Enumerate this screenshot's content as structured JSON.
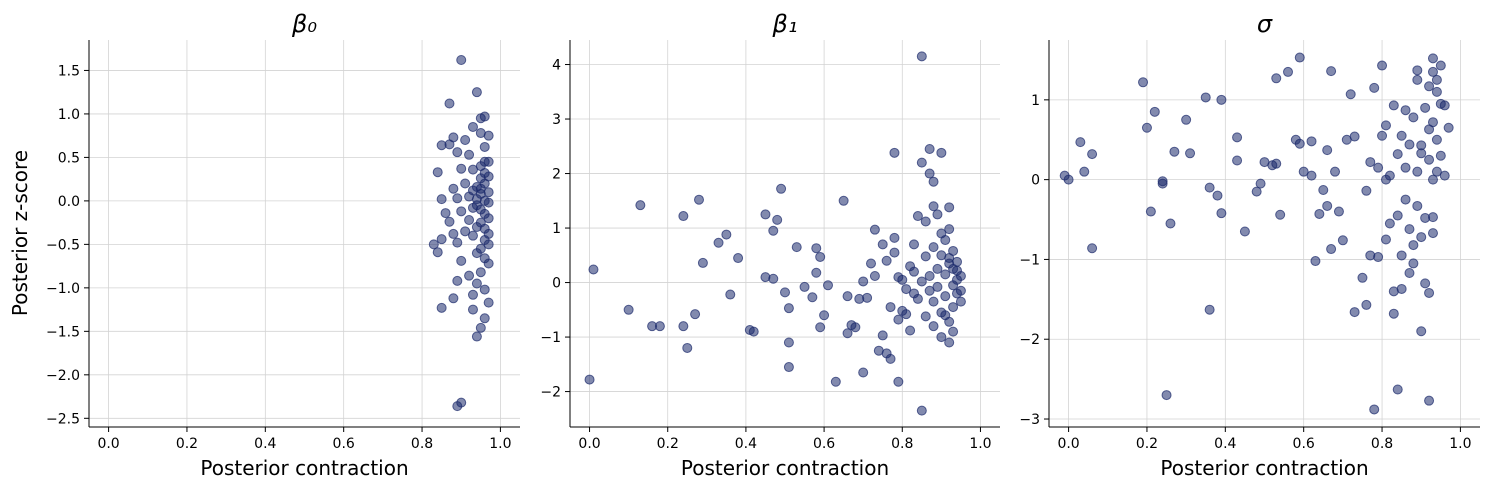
{
  "figure": {
    "ylabel": "Posterior z-score",
    "point_color": "#1b2a6b",
    "grid_color": "#d3d3d3"
  },
  "chart_data": [
    {
      "type": "scatter",
      "title": "β₀",
      "xlabel": "Posterior contraction",
      "ylabel": "Posterior z-score",
      "xlim": [
        -0.05,
        1.05
      ],
      "ylim": [
        -2.6,
        1.85
      ],
      "xticks": [
        "0.0",
        "0.2",
        "0.4",
        "0.6",
        "0.8",
        "1.0"
      ],
      "yticks": [
        "−2.5",
        "−2.0",
        "−1.5",
        "−1.0",
        "−0.5",
        "0.0",
        "0.5",
        "1.0",
        "1.5"
      ],
      "grid": true,
      "points": [
        [
          0.9,
          1.62
        ],
        [
          0.87,
          1.12
        ],
        [
          0.94,
          1.25
        ],
        [
          0.96,
          0.97
        ],
        [
          0.95,
          0.95
        ],
        [
          0.93,
          0.85
        ],
        [
          0.88,
          0.73
        ],
        [
          0.87,
          0.65
        ],
        [
          0.85,
          0.64
        ],
        [
          0.91,
          0.7
        ],
        [
          0.95,
          0.78
        ],
        [
          0.97,
          0.75
        ],
        [
          0.89,
          0.56
        ],
        [
          0.92,
          0.53
        ],
        [
          0.96,
          0.62
        ],
        [
          0.97,
          0.45
        ],
        [
          0.95,
          0.4
        ],
        [
          0.93,
          0.36
        ],
        [
          0.9,
          0.37
        ],
        [
          0.97,
          0.28
        ],
        [
          0.84,
          0.33
        ],
        [
          0.95,
          0.26
        ],
        [
          0.96,
          0.2
        ],
        [
          0.94,
          0.16
        ],
        [
          0.93,
          0.12
        ],
        [
          0.88,
          0.14
        ],
        [
          0.97,
          0.1
        ],
        [
          0.91,
          0.2
        ],
        [
          0.85,
          0.02
        ],
        [
          0.89,
          0.03
        ],
        [
          0.92,
          0.05
        ],
        [
          0.95,
          0.08
        ],
        [
          0.96,
          0.0
        ],
        [
          0.97,
          -0.02
        ],
        [
          0.94,
          -0.05
        ],
        [
          0.93,
          -0.08
        ],
        [
          0.95,
          -0.1
        ],
        [
          0.86,
          -0.14
        ],
        [
          0.9,
          -0.12
        ],
        [
          0.96,
          -0.15
        ],
        [
          0.97,
          -0.2
        ],
        [
          0.92,
          -0.22
        ],
        [
          0.95,
          -0.25
        ],
        [
          0.94,
          -0.3
        ],
        [
          0.87,
          -0.24
        ],
        [
          0.85,
          -0.44
        ],
        [
          0.88,
          -0.38
        ],
        [
          0.91,
          -0.35
        ],
        [
          0.93,
          -0.4
        ],
        [
          0.96,
          -0.45
        ],
        [
          0.97,
          -0.5
        ],
        [
          0.95,
          -0.55
        ],
        [
          0.89,
          -0.48
        ],
        [
          0.83,
          -0.5
        ],
        [
          0.84,
          -0.59
        ],
        [
          0.94,
          -0.6
        ],
        [
          0.96,
          -0.66
        ],
        [
          0.9,
          -0.69
        ],
        [
          0.97,
          -0.72
        ],
        [
          0.92,
          -0.86
        ],
        [
          0.95,
          -0.82
        ],
        [
          0.94,
          -0.95
        ],
        [
          0.89,
          -0.92
        ],
        [
          0.96,
          -1.02
        ],
        [
          0.93,
          -1.08
        ],
        [
          0.88,
          -1.12
        ],
        [
          0.97,
          -1.17
        ],
        [
          0.93,
          -1.25
        ],
        [
          0.85,
          -1.23
        ],
        [
          0.96,
          -1.35
        ],
        [
          0.95,
          -1.46
        ],
        [
          0.94,
          -1.56
        ],
        [
          0.9,
          -2.32
        ],
        [
          0.89,
          -2.36
        ],
        [
          0.96,
          0.32
        ],
        [
          0.95,
          0.14
        ],
        [
          0.96,
          -0.32
        ],
        [
          0.97,
          -0.38
        ],
        [
          0.94,
          0.02
        ],
        [
          0.96,
          0.45
        ]
      ]
    },
    {
      "type": "scatter",
      "title": "β₁",
      "xlabel": "Posterior contraction",
      "ylabel": "",
      "xlim": [
        -0.05,
        1.05
      ],
      "ylim": [
        -2.65,
        4.45
      ],
      "xticks": [
        "0.0",
        "0.2",
        "0.4",
        "0.6",
        "0.8",
        "1.0"
      ],
      "yticks": [
        "−2",
        "−1",
        "0",
        "1",
        "2",
        "3",
        "4"
      ],
      "grid": true,
      "points": [
        [
          0.0,
          -1.78
        ],
        [
          0.01,
          0.24
        ],
        [
          0.1,
          -0.5
        ],
        [
          0.13,
          1.42
        ],
        [
          0.16,
          -0.8
        ],
        [
          0.18,
          -0.8
        ],
        [
          0.24,
          1.22
        ],
        [
          0.24,
          -0.8
        ],
        [
          0.25,
          -1.2
        ],
        [
          0.27,
          -0.58
        ],
        [
          0.28,
          1.52
        ],
        [
          0.29,
          0.36
        ],
        [
          0.33,
          0.73
        ],
        [
          0.35,
          0.88
        ],
        [
          0.36,
          -0.22
        ],
        [
          0.38,
          0.45
        ],
        [
          0.41,
          -0.87
        ],
        [
          0.42,
          -0.9
        ],
        [
          0.45,
          0.1
        ],
        [
          0.45,
          1.25
        ],
        [
          0.47,
          0.07
        ],
        [
          0.47,
          0.95
        ],
        [
          0.48,
          1.15
        ],
        [
          0.49,
          1.72
        ],
        [
          0.5,
          -0.18
        ],
        [
          0.51,
          -0.47
        ],
        [
          0.51,
          -1.1
        ],
        [
          0.51,
          -1.55
        ],
        [
          0.53,
          0.65
        ],
        [
          0.55,
          -0.08
        ],
        [
          0.57,
          -0.27
        ],
        [
          0.58,
          0.63
        ],
        [
          0.59,
          0.47
        ],
        [
          0.58,
          0.18
        ],
        [
          0.59,
          -0.82
        ],
        [
          0.6,
          -0.6
        ],
        [
          0.61,
          -0.05
        ],
        [
          0.63,
          -1.82
        ],
        [
          0.65,
          1.5
        ],
        [
          0.66,
          -0.93
        ],
        [
          0.66,
          -0.25
        ],
        [
          0.67,
          -0.78
        ],
        [
          0.68,
          -0.82
        ],
        [
          0.69,
          -0.3
        ],
        [
          0.7,
          -1.65
        ],
        [
          0.7,
          0.02
        ],
        [
          0.71,
          -0.28
        ],
        [
          0.72,
          0.35
        ],
        [
          0.73,
          0.97
        ],
        [
          0.73,
          0.12
        ],
        [
          0.74,
          -1.25
        ],
        [
          0.75,
          -0.97
        ],
        [
          0.75,
          0.7
        ],
        [
          0.76,
          -1.3
        ],
        [
          0.76,
          0.4
        ],
        [
          0.77,
          -1.4
        ],
        [
          0.77,
          -0.45
        ],
        [
          0.78,
          0.55
        ],
        [
          0.78,
          0.82
        ],
        [
          0.78,
          2.38
        ],
        [
          0.79,
          0.1
        ],
        [
          0.79,
          -0.68
        ],
        [
          0.79,
          -1.82
        ],
        [
          0.8,
          0.05
        ],
        [
          0.8,
          -0.52
        ],
        [
          0.81,
          -0.12
        ],
        [
          0.81,
          -0.58
        ],
        [
          0.82,
          0.3
        ],
        [
          0.82,
          -0.88
        ],
        [
          0.83,
          0.7
        ],
        [
          0.83,
          0.2
        ],
        [
          0.83,
          -0.2
        ],
        [
          0.84,
          1.22
        ],
        [
          0.84,
          -0.3
        ],
        [
          0.85,
          4.15
        ],
        [
          0.85,
          2.2
        ],
        [
          0.85,
          -2.35
        ],
        [
          0.85,
          0.02
        ],
        [
          0.86,
          0.48
        ],
        [
          0.86,
          -0.62
        ],
        [
          0.86,
          1.12
        ],
        [
          0.87,
          2.45
        ],
        [
          0.87,
          2.0
        ],
        [
          0.87,
          0.12
        ],
        [
          0.88,
          1.85
        ],
        [
          0.88,
          1.4
        ],
        [
          0.88,
          0.65
        ],
        [
          0.88,
          -0.35
        ],
        [
          0.88,
          -0.8
        ],
        [
          0.89,
          1.25
        ],
        [
          0.89,
          0.25
        ],
        [
          0.89,
          -0.08
        ],
        [
          0.9,
          2.38
        ],
        [
          0.9,
          0.9
        ],
        [
          0.9,
          0.5
        ],
        [
          0.9,
          -0.55
        ],
        [
          0.9,
          -1.0
        ],
        [
          0.91,
          0.78
        ],
        [
          0.91,
          0.15
        ],
        [
          0.91,
          -0.25
        ],
        [
          0.92,
          1.38
        ],
        [
          0.92,
          0.98
        ],
        [
          0.92,
          0.35
        ],
        [
          0.92,
          -0.72
        ],
        [
          0.92,
          -1.1
        ],
        [
          0.93,
          0.58
        ],
        [
          0.93,
          -0.05
        ],
        [
          0.93,
          -0.45
        ],
        [
          0.93,
          -0.9
        ],
        [
          0.94,
          0.22
        ],
        [
          0.94,
          0.05
        ],
        [
          0.94,
          0.38
        ],
        [
          0.95,
          0.12
        ],
        [
          0.95,
          -0.15
        ],
        [
          0.95,
          -0.35
        ],
        [
          0.92,
          0.45
        ],
        [
          0.91,
          -0.6
        ],
        [
          0.93,
          0.25
        ],
        [
          0.94,
          -0.2
        ],
        [
          0.87,
          -0.15
        ]
      ]
    },
    {
      "type": "scatter",
      "title": "σ",
      "xlabel": "Posterior contraction",
      "ylabel": "",
      "xlim": [
        -0.05,
        1.05
      ],
      "ylim": [
        -3.1,
        1.75
      ],
      "xticks": [
        "0.0",
        "0.2",
        "0.4",
        "0.6",
        "0.8",
        "1.0"
      ],
      "yticks": [
        "−3",
        "−2",
        "−1",
        "0",
        "1"
      ],
      "grid": true,
      "points": [
        [
          -0.01,
          0.05
        ],
        [
          0.0,
          0.0
        ],
        [
          0.03,
          0.47
        ],
        [
          0.04,
          0.1
        ],
        [
          0.06,
          0.32
        ],
        [
          0.06,
          -0.86
        ],
        [
          0.19,
          1.22
        ],
        [
          0.2,
          0.65
        ],
        [
          0.21,
          -0.4
        ],
        [
          0.22,
          0.85
        ],
        [
          0.24,
          -0.05
        ],
        [
          0.24,
          -0.02
        ],
        [
          0.25,
          -2.7
        ],
        [
          0.26,
          -0.55
        ],
        [
          0.27,
          0.35
        ],
        [
          0.3,
          0.75
        ],
        [
          0.31,
          0.33
        ],
        [
          0.35,
          1.03
        ],
        [
          0.36,
          -1.63
        ],
        [
          0.36,
          -0.1
        ],
        [
          0.38,
          -0.2
        ],
        [
          0.39,
          1.0
        ],
        [
          0.39,
          -0.42
        ],
        [
          0.43,
          0.53
        ],
        [
          0.43,
          0.24
        ],
        [
          0.45,
          -0.65
        ],
        [
          0.48,
          -0.15
        ],
        [
          0.49,
          -0.05
        ],
        [
          0.5,
          0.22
        ],
        [
          0.52,
          0.18
        ],
        [
          0.53,
          0.2
        ],
        [
          0.53,
          1.27
        ],
        [
          0.54,
          -0.44
        ],
        [
          0.56,
          1.35
        ],
        [
          0.58,
          0.5
        ],
        [
          0.59,
          0.45
        ],
        [
          0.59,
          1.53
        ],
        [
          0.6,
          0.1
        ],
        [
          0.62,
          0.48
        ],
        [
          0.62,
          0.05
        ],
        [
          0.63,
          -1.02
        ],
        [
          0.64,
          -0.43
        ],
        [
          0.65,
          -0.13
        ],
        [
          0.66,
          -0.33
        ],
        [
          0.66,
          0.37
        ],
        [
          0.67,
          1.36
        ],
        [
          0.67,
          -0.87
        ],
        [
          0.68,
          0.1
        ],
        [
          0.69,
          -0.4
        ],
        [
          0.7,
          -0.76
        ],
        [
          0.71,
          0.5
        ],
        [
          0.72,
          1.07
        ],
        [
          0.73,
          -1.66
        ],
        [
          0.73,
          0.54
        ],
        [
          0.75,
          -1.23
        ],
        [
          0.76,
          -0.14
        ],
        [
          0.76,
          -1.57
        ],
        [
          0.77,
          0.22
        ],
        [
          0.77,
          -0.95
        ],
        [
          0.78,
          1.15
        ],
        [
          0.78,
          -2.88
        ],
        [
          0.79,
          -0.97
        ],
        [
          0.79,
          0.15
        ],
        [
          0.8,
          0.55
        ],
        [
          0.8,
          1.43
        ],
        [
          0.81,
          0.68
        ],
        [
          0.81,
          -0.75
        ],
        [
          0.81,
          0.0
        ],
        [
          0.82,
          0.05
        ],
        [
          0.82,
          -0.55
        ],
        [
          0.83,
          0.93
        ],
        [
          0.83,
          -1.68
        ],
        [
          0.83,
          -1.4
        ],
        [
          0.84,
          -2.63
        ],
        [
          0.84,
          -0.45
        ],
        [
          0.84,
          0.32
        ],
        [
          0.85,
          0.55
        ],
        [
          0.85,
          -1.37
        ],
        [
          0.85,
          -0.95
        ],
        [
          0.86,
          0.87
        ],
        [
          0.86,
          -0.25
        ],
        [
          0.86,
          0.15
        ],
        [
          0.87,
          -0.62
        ],
        [
          0.87,
          -1.17
        ],
        [
          0.87,
          0.44
        ],
        [
          0.88,
          0.78
        ],
        [
          0.88,
          -1.05
        ],
        [
          0.88,
          -0.82
        ],
        [
          0.89,
          1.25
        ],
        [
          0.89,
          1.37
        ],
        [
          0.89,
          -0.33
        ],
        [
          0.89,
          0.1
        ],
        [
          0.9,
          0.33
        ],
        [
          0.9,
          -1.9
        ],
        [
          0.9,
          -0.72
        ],
        [
          0.9,
          0.43
        ],
        [
          0.91,
          -0.48
        ],
        [
          0.91,
          0.9
        ],
        [
          0.91,
          -1.3
        ],
        [
          0.92,
          -2.77
        ],
        [
          0.92,
          1.17
        ],
        [
          0.92,
          -1.42
        ],
        [
          0.92,
          0.63
        ],
        [
          0.93,
          1.52
        ],
        [
          0.93,
          1.35
        ],
        [
          0.93,
          0.72
        ],
        [
          0.93,
          -0.47
        ],
        [
          0.93,
          -0.67
        ],
        [
          0.94,
          1.25
        ],
        [
          0.94,
          1.1
        ],
        [
          0.94,
          0.5
        ],
        [
          0.94,
          0.1
        ],
        [
          0.95,
          1.43
        ],
        [
          0.95,
          0.95
        ],
        [
          0.95,
          0.3
        ],
        [
          0.96,
          0.93
        ],
        [
          0.96,
          0.05
        ],
        [
          0.97,
          0.65
        ],
        [
          0.92,
          0.25
        ],
        [
          0.93,
          0.0
        ]
      ]
    }
  ]
}
